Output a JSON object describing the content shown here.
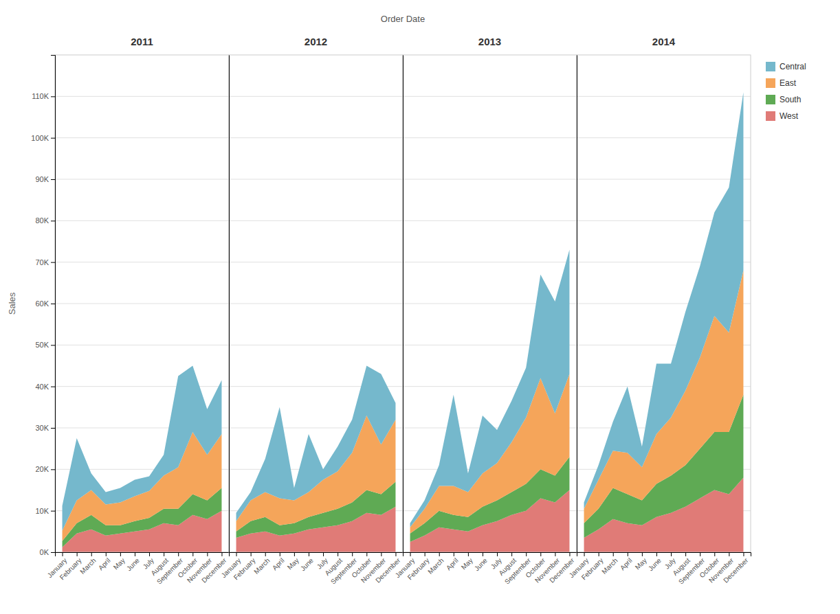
{
  "chart_data": [
    {
      "type": "area",
      "stacked": true,
      "title": "2011",
      "ylabel": "Sales",
      "annotations": [
        {
          "text": "Order Date"
        }
      ],
      "categories": [
        "January",
        "February",
        "March",
        "April",
        "May",
        "June",
        "July",
        "August",
        "September",
        "October",
        "November",
        "December"
      ],
      "series": [
        {
          "name": "West",
          "color": "#e07b77",
          "values": [
            1200,
            4500,
            5500,
            4000,
            4500,
            5000,
            5500,
            7000,
            6500,
            9000,
            8000,
            10000
          ]
        },
        {
          "name": "South",
          "color": "#5faa54",
          "values": [
            1500,
            2500,
            3500,
            2500,
            2000,
            2500,
            2800,
            3500,
            4000,
            5000,
            4500,
            5500
          ]
        },
        {
          "name": "East",
          "color": "#f5a55a",
          "values": [
            2500,
            5500,
            6000,
            5000,
            5500,
            6000,
            6500,
            8000,
            10000,
            15000,
            11000,
            13000
          ]
        },
        {
          "name": "Central",
          "color": "#75b8cc",
          "values": [
            6000,
            15000,
            4000,
            3000,
            3500,
            4000,
            3500,
            5000,
            22000,
            16000,
            11000,
            13000
          ]
        }
      ],
      "ylim": [
        0,
        120000
      ],
      "yticks": [
        {
          "value": 0,
          "label": "0K"
        },
        {
          "value": 10000,
          "label": "10K"
        },
        {
          "value": 20000,
          "label": "20K"
        },
        {
          "value": 30000,
          "label": "30K"
        },
        {
          "value": 40000,
          "label": "40K"
        },
        {
          "value": 50000,
          "label": "50K"
        },
        {
          "value": 60000,
          "label": "60K"
        },
        {
          "value": 70000,
          "label": "70K"
        },
        {
          "value": 80000,
          "label": "80K"
        },
        {
          "value": 90000,
          "label": "90K"
        },
        {
          "value": 100000,
          "label": "100K"
        },
        {
          "value": 110000,
          "label": "110K"
        }
      ],
      "grid": true,
      "legend": "right"
    },
    {
      "type": "area",
      "stacked": true,
      "title": "2012",
      "categories": [
        "January",
        "February",
        "March",
        "April",
        "May",
        "June",
        "July",
        "August",
        "September",
        "October",
        "November",
        "December"
      ],
      "series": [
        {
          "color": "#e07b77",
          "values": [
            3500,
            4500,
            5000,
            4000,
            4500,
            5500,
            6000,
            6500,
            7500,
            9500,
            9000,
            11000
          ]
        },
        {
          "color": "#5faa54",
          "values": [
            1500,
            3000,
            3500,
            2500,
            2500,
            3000,
            3500,
            4000,
            4500,
            5500,
            5000,
            6000
          ]
        },
        {
          "color": "#f5a55a",
          "values": [
            2500,
            5000,
            6000,
            6500,
            5500,
            6000,
            8000,
            9000,
            12000,
            18000,
            12000,
            15000
          ]
        },
        {
          "color": "#75b8cc",
          "values": [
            2000,
            2000,
            8000,
            22000,
            3000,
            14000,
            2500,
            6000,
            8000,
            12000,
            17000,
            4000
          ]
        }
      ],
      "ylim": [
        0,
        120000
      ],
      "yticks": [
        0,
        10000,
        20000,
        30000,
        40000,
        50000,
        60000,
        70000,
        80000,
        90000,
        100000,
        110000
      ],
      "grid": true,
      "tick_labels": "x"
    },
    {
      "type": "area",
      "stacked": true,
      "title": "2013",
      "categories": [
        "January",
        "February",
        "March",
        "April",
        "May",
        "June",
        "July",
        "August",
        "September",
        "October",
        "November",
        "December"
      ],
      "series": [
        {
          "color": "#e07b77",
          "values": [
            2500,
            4000,
            6000,
            5500,
            5000,
            6500,
            7500,
            9000,
            10000,
            13000,
            12000,
            15000
          ]
        },
        {
          "color": "#5faa54",
          "values": [
            2000,
            3000,
            4000,
            3500,
            3500,
            4500,
            5000,
            5500,
            6500,
            7000,
            6500,
            8000
          ]
        },
        {
          "color": "#f5a55a",
          "values": [
            1500,
            3500,
            6000,
            7000,
            6000,
            8000,
            9000,
            12000,
            16000,
            22000,
            15000,
            20000
          ]
        },
        {
          "color": "#75b8cc",
          "values": [
            1000,
            2000,
            5000,
            22000,
            4500,
            14000,
            8000,
            10000,
            12000,
            25000,
            27000,
            30000
          ]
        }
      ],
      "ylim": [
        0,
        120000
      ],
      "yticks": [
        0,
        10000,
        20000,
        30000,
        40000,
        50000,
        60000,
        70000,
        80000,
        90000,
        100000,
        110000
      ],
      "grid": true,
      "tick_labels": "x"
    },
    {
      "type": "area",
      "stacked": true,
      "title": "2014",
      "categories": [
        "January",
        "February",
        "March",
        "April",
        "May",
        "June",
        "July",
        "August",
        "September",
        "October",
        "November",
        "December"
      ],
      "series": [
        {
          "color": "#e07b77",
          "values": [
            3500,
            5500,
            8000,
            7000,
            6500,
            8500,
            9500,
            11000,
            13000,
            15000,
            14000,
            18000
          ]
        },
        {
          "color": "#5faa54",
          "values": [
            3500,
            5000,
            7500,
            7000,
            6000,
            8000,
            9000,
            10000,
            12000,
            14000,
            15000,
            20000
          ]
        },
        {
          "color": "#f5a55a",
          "values": [
            3500,
            7000,
            9000,
            10000,
            8000,
            12000,
            14000,
            18000,
            22000,
            28000,
            24000,
            30000
          ]
        },
        {
          "color": "#75b8cc",
          "values": [
            1500,
            3500,
            7000,
            16000,
            5000,
            17000,
            13000,
            19000,
            22000,
            25000,
            35000,
            43000
          ]
        }
      ],
      "ylim": [
        0,
        120000
      ],
      "yticks": [
        0,
        10000,
        20000,
        30000,
        40000,
        50000,
        60000,
        70000,
        80000,
        90000,
        100000,
        110000
      ],
      "grid": true,
      "tick_labels": "x"
    }
  ]
}
